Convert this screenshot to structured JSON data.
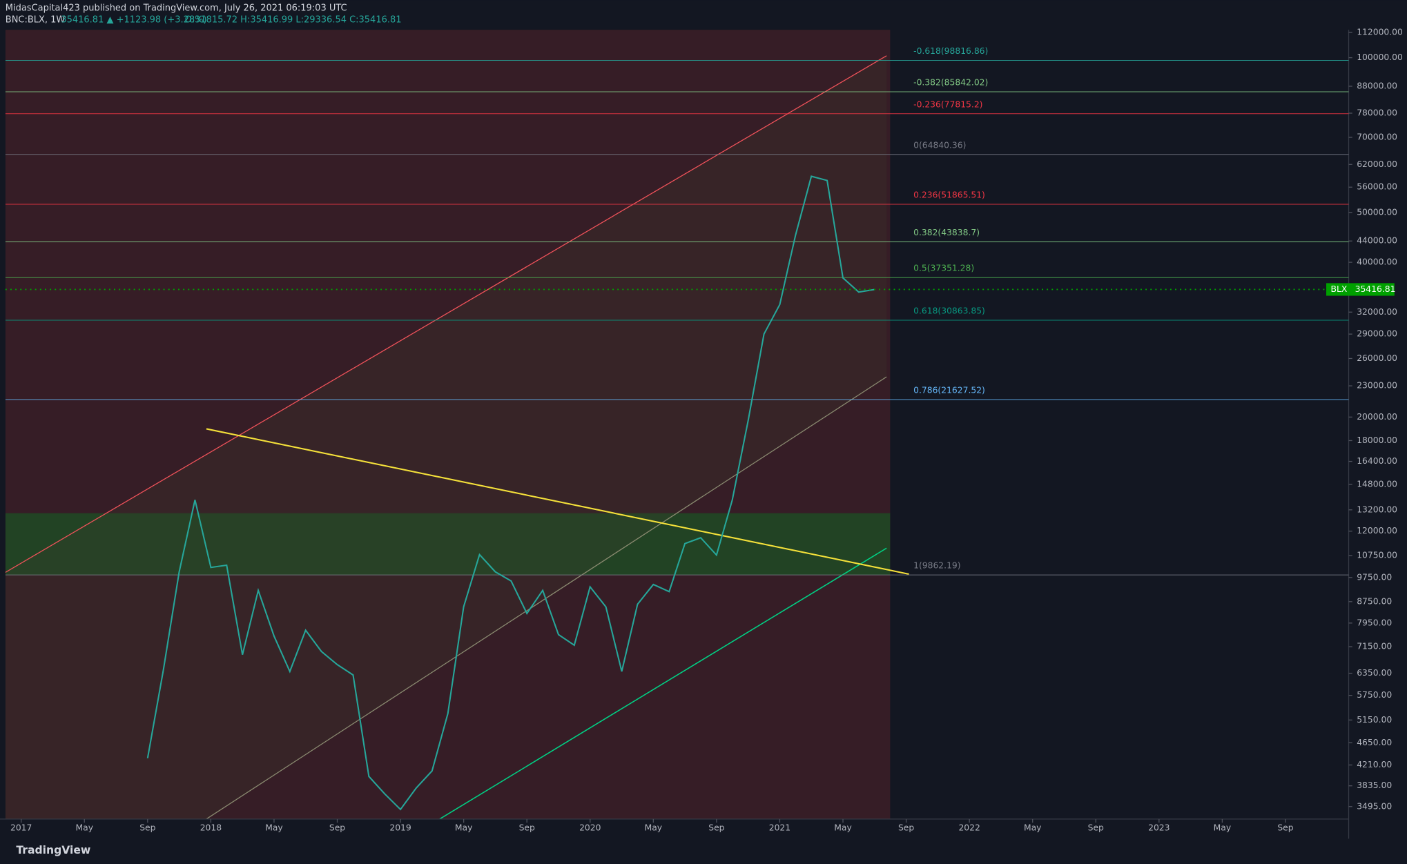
{
  "publisher": "MidasCapital423 published on TradingView.com, July 26, 2021 06:19:03 UTC",
  "footer": "TradingView",
  "chart_data": {
    "type": "line",
    "symbol": "BNC:BLX, 1W",
    "change": "35416.81 ▲ +1123.98 (+3.28%)",
    "ohlc": "O:31815.72 H:35416.99 L:29336.54 C:35416.81",
    "x": [
      "2017-09",
      "2017-10",
      "2017-11",
      "2017-12",
      "2018-01",
      "2018-02",
      "2018-03",
      "2018-04",
      "2018-05",
      "2018-06",
      "2018-07",
      "2018-08",
      "2018-09",
      "2018-10",
      "2018-11",
      "2018-12",
      "2019-01",
      "2019-02",
      "2019-03",
      "2019-04",
      "2019-05",
      "2019-06",
      "2019-07",
      "2019-08",
      "2019-09",
      "2019-10",
      "2019-11",
      "2019-12",
      "2020-01",
      "2020-02",
      "2020-03",
      "2020-04",
      "2020-05",
      "2020-06",
      "2020-07",
      "2020-08",
      "2020-09",
      "2020-10",
      "2020-11",
      "2020-12",
      "2021-01",
      "2021-02",
      "2021-03",
      "2021-04",
      "2021-05",
      "2021-06",
      "2021-07"
    ],
    "values": [
      4340,
      6450,
      10000,
      13800,
      10200,
      10300,
      6900,
      9200,
      7500,
      6400,
      7700,
      7000,
      6600,
      6300,
      4000,
      3700,
      3450,
      3800,
      4100,
      5300,
      8550,
      10800,
      10000,
      9600,
      8300,
      9200,
      7550,
      7200,
      9350,
      8550,
      6400,
      8650,
      9450,
      9150,
      11350,
      11650,
      10780,
      13800,
      19700,
      29000,
      33100,
      45200,
      58800,
      57700,
      37300,
      35000,
      35416.81
    ],
    "color": "#26a69a",
    "log_scale": true,
    "ylim": [
      3305,
      113350
    ],
    "yticks": [
      {
        "value": 112000,
        "label": "112000.00"
      },
      {
        "value": 100000,
        "label": "100000.00"
      },
      {
        "value": 88000,
        "label": "88000.00"
      },
      {
        "value": 78000,
        "label": "78000.00"
      },
      {
        "value": 70000,
        "label": "70000.00"
      },
      {
        "value": 62000,
        "label": "62000.00"
      },
      {
        "value": 56000,
        "label": "56000.00"
      },
      {
        "value": 50000,
        "label": "50000.00"
      },
      {
        "value": 44000,
        "label": "44000.00"
      },
      {
        "value": 40000,
        "label": "40000.00"
      },
      {
        "value": 32000,
        "label": "32000.00"
      },
      {
        "value": 29000,
        "label": "29000.00"
      },
      {
        "value": 26000,
        "label": "26000.00"
      },
      {
        "value": 23000,
        "label": "23000.00"
      },
      {
        "value": 20000,
        "label": "20000.00"
      },
      {
        "value": 18000,
        "label": "18000.00"
      },
      {
        "value": 16400,
        "label": "16400.00"
      },
      {
        "value": 14800,
        "label": "14800.00"
      },
      {
        "value": 13200,
        "label": "13200.00"
      },
      {
        "value": 12000,
        "label": "12000.00"
      },
      {
        "value": 10750,
        "label": "10750.00"
      },
      {
        "value": 9750,
        "label": "9750.00"
      },
      {
        "value": 8750,
        "label": "8750.00"
      },
      {
        "value": 7950,
        "label": "7950.00"
      },
      {
        "value": 7150,
        "label": "7150.00"
      },
      {
        "value": 6350,
        "label": "6350.00"
      },
      {
        "value": 5750,
        "label": "5750.00"
      },
      {
        "value": 5150,
        "label": "5150.00"
      },
      {
        "value": 4650,
        "label": "4650.00"
      },
      {
        "value": 4210,
        "label": "4210.00"
      },
      {
        "value": 3835,
        "label": "3835.00"
      },
      {
        "value": 3495,
        "label": "3495.00"
      }
    ],
    "xlim": [
      "2016-12",
      "2024-01"
    ],
    "xticks": [
      {
        "value": "2017-01",
        "label": "2017"
      },
      {
        "value": "2017-05",
        "label": "May"
      },
      {
        "value": "2017-09",
        "label": "Sep"
      },
      {
        "value": "2018-01",
        "label": "2018"
      },
      {
        "value": "2018-05",
        "label": "May"
      },
      {
        "value": "2018-09",
        "label": "Sep"
      },
      {
        "value": "2019-01",
        "label": "2019"
      },
      {
        "value": "2019-05",
        "label": "May"
      },
      {
        "value": "2019-09",
        "label": "Sep"
      },
      {
        "value": "2020-01",
        "label": "2020"
      },
      {
        "value": "2020-05",
        "label": "May"
      },
      {
        "value": "2020-09",
        "label": "Sep"
      },
      {
        "value": "2021-01",
        "label": "2021"
      },
      {
        "value": "2021-05",
        "label": "May"
      },
      {
        "value": "2021-09",
        "label": "Sep"
      },
      {
        "value": "2022-01",
        "label": "2022"
      },
      {
        "value": "2022-05",
        "label": "May"
      },
      {
        "value": "2022-09",
        "label": "Sep"
      },
      {
        "value": "2023-01",
        "label": "2023"
      },
      {
        "value": "2023-05",
        "label": "May"
      },
      {
        "value": "2023-09",
        "label": "Sep"
      }
    ],
    "fib_levels": [
      {
        "label": "-0.618(98816.86)",
        "value": 98816.86,
        "color": "#26a69a"
      },
      {
        "label": "-0.382(85842.02)",
        "value": 85842.02,
        "color": "#81c784"
      },
      {
        "label": "-0.236(77815.2)",
        "value": 77815.2,
        "color": "#f23645"
      },
      {
        "label": "0(64840.36)",
        "value": 64840.36,
        "color": "#787b86"
      },
      {
        "label": "0.236(51865.51)",
        "value": 51865.51,
        "color": "#f23645"
      },
      {
        "label": "0.382(43838.7)",
        "value": 43838.7,
        "color": "#81c784"
      },
      {
        "label": "0.5(37351.28)",
        "value": 37351.28,
        "color": "#4caf50"
      },
      {
        "label": "0.618(30863.85)",
        "value": 30863.85,
        "color": "#089981"
      },
      {
        "label": "0.786(21627.52)",
        "value": 21627.52,
        "color": "#64b5f6"
      },
      {
        "label": "1(9862.19)",
        "value": 9862.19,
        "color": "#787b86"
      }
    ],
    "last_price": {
      "name": "BLX",
      "value": 35416.81,
      "label": "35416.81",
      "color": "#00a000"
    }
  }
}
